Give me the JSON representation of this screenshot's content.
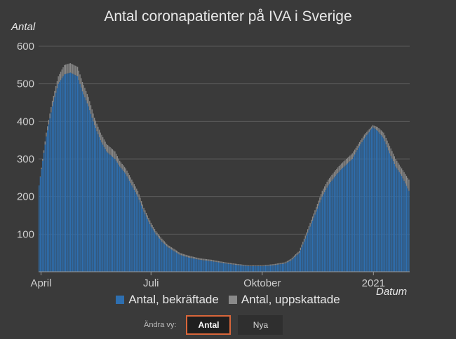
{
  "title": "Antal coronapatienter på IVA i Sverige",
  "ylabel": "Antal",
  "xlabel": "Datum",
  "legend": {
    "confirmed_label": "Antal, bekräftade",
    "estimated_label": "Antal, uppskattade"
  },
  "view_switch": {
    "label": "Ändra vy:",
    "active_button": "Antal",
    "other_button": "Nya"
  },
  "colors": {
    "background": "#3a3a3a",
    "confirmed": "#2e6fb0",
    "estimated": "#8a8a8a",
    "grid": "#5a5a5a",
    "active_border": "#d9663a"
  },
  "chart_data": {
    "type": "bar",
    "stacked": true,
    "title": "Antal coronapatienter på IVA i Sverige",
    "ylabel": "Antal",
    "xlabel": "Datum",
    "x_start": "2020-03-30",
    "x_end": "2021-01-31",
    "ylim": [
      0,
      600
    ],
    "yticks": [
      100,
      200,
      300,
      400,
      500,
      600
    ],
    "xticks": [
      {
        "label": "April",
        "date": "2020-04-01"
      },
      {
        "label": "Juli",
        "date": "2020-07-01"
      },
      {
        "label": "Oktober",
        "date": "2020-10-01"
      },
      {
        "label": "2021",
        "date": "2021-01-01"
      }
    ],
    "grid": true,
    "legend_position": "bottom",
    "series": [
      {
        "name": "Antal, bekräftade",
        "points": [
          [
            "2020-03-30",
            230
          ],
          [
            "2020-04-05",
            360
          ],
          [
            "2020-04-10",
            440
          ],
          [
            "2020-04-15",
            500
          ],
          [
            "2020-04-20",
            525
          ],
          [
            "2020-04-25",
            530
          ],
          [
            "2020-05-01",
            520
          ],
          [
            "2020-05-05",
            480
          ],
          [
            "2020-05-10",
            440
          ],
          [
            "2020-05-15",
            390
          ],
          [
            "2020-05-20",
            350
          ],
          [
            "2020-05-25",
            320
          ],
          [
            "2020-06-01",
            300
          ],
          [
            "2020-06-05",
            280
          ],
          [
            "2020-06-10",
            260
          ],
          [
            "2020-06-15",
            230
          ],
          [
            "2020-06-20",
            200
          ],
          [
            "2020-06-25",
            160
          ],
          [
            "2020-07-01",
            120
          ],
          [
            "2020-07-05",
            100
          ],
          [
            "2020-07-10",
            80
          ],
          [
            "2020-07-15",
            65
          ],
          [
            "2020-07-20",
            55
          ],
          [
            "2020-07-25",
            45
          ],
          [
            "2020-08-01",
            38
          ],
          [
            "2020-08-10",
            32
          ],
          [
            "2020-08-20",
            28
          ],
          [
            "2020-09-01",
            22
          ],
          [
            "2020-09-10",
            18
          ],
          [
            "2020-09-20",
            15
          ],
          [
            "2020-10-01",
            15
          ],
          [
            "2020-10-10",
            17
          ],
          [
            "2020-10-20",
            22
          ],
          [
            "2020-10-25",
            30
          ],
          [
            "2020-11-01",
            50
          ],
          [
            "2020-11-05",
            80
          ],
          [
            "2020-11-10",
            120
          ],
          [
            "2020-11-15",
            160
          ],
          [
            "2020-11-20",
            200
          ],
          [
            "2020-11-25",
            230
          ],
          [
            "2020-12-01",
            255
          ],
          [
            "2020-12-05",
            270
          ],
          [
            "2020-12-10",
            285
          ],
          [
            "2020-12-15",
            300
          ],
          [
            "2020-12-20",
            330
          ],
          [
            "2020-12-25",
            355
          ],
          [
            "2021-01-01",
            385
          ],
          [
            "2021-01-05",
            375
          ],
          [
            "2021-01-10",
            355
          ],
          [
            "2021-01-15",
            315
          ],
          [
            "2021-01-20",
            280
          ],
          [
            "2021-01-25",
            255
          ],
          [
            "2021-01-31",
            215
          ]
        ]
      },
      {
        "name": "Antal, uppskattade",
        "points": [
          [
            "2020-03-30",
            0
          ],
          [
            "2020-04-05",
            10
          ],
          [
            "2020-04-10",
            15
          ],
          [
            "2020-04-15",
            20
          ],
          [
            "2020-04-20",
            25
          ],
          [
            "2020-04-25",
            25
          ],
          [
            "2020-05-01",
            25
          ],
          [
            "2020-05-05",
            25
          ],
          [
            "2020-05-10",
            25
          ],
          [
            "2020-05-15",
            20
          ],
          [
            "2020-05-20",
            20
          ],
          [
            "2020-05-25",
            20
          ],
          [
            "2020-06-01",
            20
          ],
          [
            "2020-06-05",
            15
          ],
          [
            "2020-06-10",
            15
          ],
          [
            "2020-06-15",
            15
          ],
          [
            "2020-06-20",
            15
          ],
          [
            "2020-06-25",
            10
          ],
          [
            "2020-07-01",
            10
          ],
          [
            "2020-07-05",
            8
          ],
          [
            "2020-07-10",
            8
          ],
          [
            "2020-07-15",
            6
          ],
          [
            "2020-07-20",
            6
          ],
          [
            "2020-07-25",
            5
          ],
          [
            "2020-08-01",
            5
          ],
          [
            "2020-08-10",
            4
          ],
          [
            "2020-08-20",
            4
          ],
          [
            "2020-09-01",
            3
          ],
          [
            "2020-09-10",
            3
          ],
          [
            "2020-09-20",
            2
          ],
          [
            "2020-10-01",
            2
          ],
          [
            "2020-10-10",
            3
          ],
          [
            "2020-10-20",
            3
          ],
          [
            "2020-10-25",
            4
          ],
          [
            "2020-11-01",
            6
          ],
          [
            "2020-11-05",
            8
          ],
          [
            "2020-11-10",
            10
          ],
          [
            "2020-11-15",
            12
          ],
          [
            "2020-11-20",
            15
          ],
          [
            "2020-11-25",
            15
          ],
          [
            "2020-12-01",
            15
          ],
          [
            "2020-12-05",
            15
          ],
          [
            "2020-12-10",
            15
          ],
          [
            "2020-12-15",
            15
          ],
          [
            "2020-12-20",
            10
          ],
          [
            "2020-12-25",
            10
          ],
          [
            "2021-01-01",
            5
          ],
          [
            "2021-01-05",
            10
          ],
          [
            "2021-01-10",
            15
          ],
          [
            "2021-01-15",
            20
          ],
          [
            "2021-01-20",
            20
          ],
          [
            "2021-01-25",
            20
          ],
          [
            "2021-01-31",
            30
          ]
        ]
      }
    ]
  }
}
